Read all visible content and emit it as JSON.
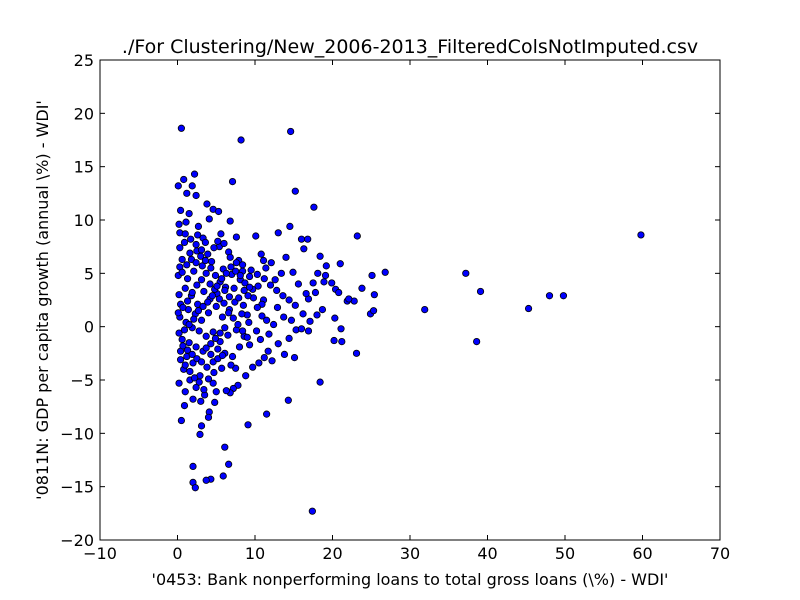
{
  "chart_data": {
    "type": "scatter",
    "title": "./For Clustering/New_2006-2013_FilteredColsNotImputed.csv",
    "xlabel": "'0453: Bank nonperforming loans to total gross loans  (\\%) - WDI'",
    "ylabel": "'0811N: GDP per capita growth  (annual \\%) - WDI'",
    "xlim": [
      -10,
      70
    ],
    "ylim": [
      -20,
      25
    ],
    "x_ticks": [
      -10,
      0,
      10,
      20,
      30,
      40,
      50,
      60,
      70
    ],
    "y_ticks": [
      -20,
      -15,
      -10,
      -5,
      0,
      5,
      10,
      15,
      20,
      25
    ],
    "grid": false,
    "marker_color": "#0000ff",
    "marker_edge_color": "#000000",
    "series": [
      {
        "points": [
          [
            0.5,
            18.6
          ],
          [
            8.2,
            17.5
          ],
          [
            14.6,
            18.3
          ],
          [
            0.1,
            13.2
          ],
          [
            0.8,
            13.8
          ],
          [
            2.2,
            14.3
          ],
          [
            1.9,
            13.2
          ],
          [
            7.1,
            13.6
          ],
          [
            1.2,
            12.5
          ],
          [
            2.4,
            12.3
          ],
          [
            15.2,
            12.7
          ],
          [
            17.6,
            11.2
          ],
          [
            0.4,
            10.9
          ],
          [
            1.5,
            10.6
          ],
          [
            3.8,
            11.5
          ],
          [
            4.6,
            11.0
          ],
          [
            5.3,
            10.8
          ],
          [
            0.2,
            9.6
          ],
          [
            1.1,
            9.8
          ],
          [
            2.7,
            9.4
          ],
          [
            4.1,
            10.1
          ],
          [
            6.8,
            9.9
          ],
          [
            14.5,
            9.4
          ],
          [
            10.1,
            8.5
          ],
          [
            23.2,
            8.5
          ],
          [
            59.8,
            8.6
          ],
          [
            0.3,
            8.8
          ],
          [
            1.0,
            8.7
          ],
          [
            2.6,
            8.6
          ],
          [
            3.3,
            8.3
          ],
          [
            5.6,
            8.7
          ],
          [
            7.6,
            8.4
          ],
          [
            13.0,
            8.8
          ],
          [
            16.0,
            8.2
          ],
          [
            16.8,
            8.2
          ],
          [
            14.0,
            6.5
          ],
          [
            18.4,
            6.6
          ],
          [
            21.0,
            5.9
          ],
          [
            16.3,
            7.3
          ],
          [
            11.1,
            6.2
          ],
          [
            26.8,
            5.1
          ],
          [
            37.2,
            5.0
          ],
          [
            25.1,
            4.8
          ],
          [
            39.1,
            3.3
          ],
          [
            31.9,
            1.6
          ],
          [
            45.3,
            1.7
          ],
          [
            48.0,
            2.9
          ],
          [
            49.8,
            2.9
          ],
          [
            38.6,
            -1.4
          ],
          [
            23.1,
            -2.5
          ],
          [
            25.4,
            3.0
          ],
          [
            24.9,
            1.2
          ],
          [
            25.3,
            1.5
          ],
          [
            21.9,
            2.4
          ],
          [
            22.8,
            2.4
          ],
          [
            23.8,
            3.6
          ],
          [
            20.4,
            3.5
          ],
          [
            19.1,
            4.8
          ],
          [
            19.2,
            5.7
          ],
          [
            18.1,
            5.0
          ],
          [
            17.8,
            3.2
          ],
          [
            16.9,
            2.6
          ],
          [
            16.2,
            1.2
          ],
          [
            14.7,
            0.6
          ],
          [
            15.3,
            -0.3
          ],
          [
            14.4,
            -1.1
          ],
          [
            13.0,
            -1.6
          ],
          [
            11.7,
            -2.3
          ],
          [
            13.8,
            -2.6
          ],
          [
            15.1,
            -2.9
          ],
          [
            16.9,
            -0.4
          ],
          [
            18.7,
            1.6
          ],
          [
            20.3,
            0.8
          ],
          [
            21.1,
            -0.2
          ],
          [
            21.2,
            -1.4
          ],
          [
            20.2,
            -1.3
          ],
          [
            18.4,
            -5.2
          ],
          [
            14.3,
            -6.9
          ],
          [
            11.5,
            -8.2
          ],
          [
            9.1,
            -9.2
          ],
          [
            17.4,
            -17.3
          ],
          [
            7.8,
            -5.5
          ],
          [
            7.2,
            -5.8
          ],
          [
            6.8,
            -6.2
          ],
          [
            6.3,
            -6.0
          ],
          [
            5.0,
            -6.1
          ],
          [
            4.8,
            -7.1
          ],
          [
            4.1,
            -8.0
          ],
          [
            3.1,
            -9.3
          ],
          [
            2.9,
            -10.1
          ],
          [
            0.5,
            -8.8
          ],
          [
            0.9,
            -7.4
          ],
          [
            4.0,
            -8.5
          ],
          [
            6.1,
            -11.3
          ],
          [
            6.6,
            -12.9
          ],
          [
            2.0,
            -13.1
          ],
          [
            4.3,
            -14.3
          ],
          [
            2.0,
            -14.6
          ],
          [
            3.7,
            -14.4
          ],
          [
            5.9,
            -14.0
          ],
          [
            2.3,
            -15.1
          ],
          [
            9.7,
            -3.8
          ],
          [
            10.5,
            -3.4
          ],
          [
            8.8,
            -4.6
          ],
          [
            7.5,
            -3.9
          ],
          [
            11.8,
            -0.7
          ],
          [
            12.4,
            0.2
          ],
          [
            13.7,
            0.9
          ],
          [
            12.9,
            1.8
          ],
          [
            11.1,
            2.5
          ],
          [
            10.4,
            3.8
          ],
          [
            12.6,
            4.4
          ],
          [
            13.4,
            5.0
          ],
          [
            14.9,
            5.1
          ],
          [
            15.6,
            4.0
          ],
          [
            16.6,
            3.1
          ],
          [
            17.5,
            4.1
          ],
          [
            18.9,
            4.2
          ],
          [
            19.9,
            4.1
          ],
          [
            20.8,
            3.2
          ],
          [
            22.1,
            2.6
          ],
          [
            18.0,
            1.1
          ],
          [
            17.1,
            0.5
          ],
          [
            16.0,
            -0.2
          ],
          [
            9.0,
            1.1
          ],
          [
            9.8,
            2.7
          ],
          [
            10.9,
            2.1
          ],
          [
            8.6,
            3.4
          ],
          [
            8.4,
            5.2
          ],
          [
            9.3,
            4.7
          ],
          [
            11.4,
            5.5
          ],
          [
            12.1,
            6.0
          ],
          [
            10.8,
            6.8
          ],
          [
            7.9,
            6.2
          ],
          [
            6.6,
            7.0
          ],
          [
            5.4,
            7.5
          ],
          [
            3.6,
            7.9
          ],
          [
            2.5,
            7.1
          ],
          [
            1.6,
            6.9
          ],
          [
            0.6,
            6.3
          ],
          [
            0.3,
            5.6
          ],
          [
            0.1,
            4.8
          ],
          [
            1.3,
            4.5
          ],
          [
            2.1,
            5.2
          ],
          [
            3.2,
            5.7
          ],
          [
            4.4,
            6.1
          ],
          [
            5.9,
            5.4
          ],
          [
            7.0,
            4.9
          ],
          [
            8.1,
            4.4
          ],
          [
            6.2,
            3.7
          ],
          [
            5.1,
            3.1
          ],
          [
            4.2,
            2.6
          ],
          [
            3.4,
            3.3
          ],
          [
            2.6,
            2.1
          ],
          [
            1.8,
            2.9
          ],
          [
            1.0,
            3.6
          ],
          [
            0.2,
            3.0
          ],
          [
            0.4,
            2.1
          ],
          [
            1.4,
            1.6
          ],
          [
            2.3,
            1.2
          ],
          [
            3.1,
            0.6
          ],
          [
            4.0,
            1.3
          ],
          [
            5.0,
            1.9
          ],
          [
            5.8,
            0.9
          ],
          [
            6.7,
            1.6
          ],
          [
            7.4,
            2.3
          ],
          [
            8.3,
            1.2
          ],
          [
            9.2,
            0.4
          ],
          [
            10.2,
            -0.4
          ],
          [
            8.6,
            -0.9
          ],
          [
            7.6,
            -0.3
          ],
          [
            6.5,
            -0.8
          ],
          [
            5.5,
            -1.4
          ],
          [
            4.6,
            -0.5
          ],
          [
            3.7,
            -0.9
          ],
          [
            2.8,
            -0.4
          ],
          [
            1.9,
            -0.1
          ],
          [
            1.1,
            0.4
          ],
          [
            0.3,
            0.9
          ],
          [
            0.2,
            -0.6
          ],
          [
            0.6,
            -1.2
          ],
          [
            1.5,
            -1.5
          ],
          [
            2.4,
            -1.9
          ],
          [
            3.3,
            -2.3
          ],
          [
            4.3,
            -2.6
          ],
          [
            5.2,
            -2.1
          ],
          [
            6.1,
            -2.5
          ],
          [
            7.1,
            -2.8
          ],
          [
            8.0,
            -1.9
          ],
          [
            9.3,
            -1.7
          ],
          [
            10.7,
            -1.2
          ],
          [
            11.2,
            -2.9
          ],
          [
            12.2,
            -3.2
          ],
          [
            6.9,
            -3.6
          ],
          [
            5.7,
            -3.9
          ],
          [
            4.7,
            -4.3
          ],
          [
            3.8,
            -3.8
          ],
          [
            2.9,
            -4.6
          ],
          [
            2.0,
            -3.4
          ],
          [
            1.2,
            -2.8
          ],
          [
            0.4,
            -2.3
          ],
          [
            0.8,
            -4.0
          ],
          [
            1.6,
            -5.0
          ],
          [
            2.4,
            -5.7
          ],
          [
            3.5,
            -6.4
          ],
          [
            4.6,
            -5.3
          ],
          [
            0.2,
            -5.3
          ],
          [
            1.0,
            -6.1
          ],
          [
            2.0,
            -6.8
          ],
          [
            3.0,
            -7.0
          ],
          [
            0.3,
            7.4
          ],
          [
            0.9,
            7.9
          ],
          [
            1.7,
            8.2
          ],
          [
            2.4,
            7.7
          ],
          [
            3.1,
            7.2
          ],
          [
            3.9,
            6.8
          ],
          [
            4.7,
            7.4
          ],
          [
            5.2,
            8.0
          ],
          [
            6.0,
            7.8
          ],
          [
            6.8,
            6.5
          ],
          [
            7.6,
            6.0
          ],
          [
            8.4,
            5.8
          ],
          [
            9.5,
            5.3
          ],
          [
            10.3,
            4.9
          ],
          [
            11.2,
            4.5
          ],
          [
            12.0,
            3.9
          ],
          [
            12.8,
            3.4
          ],
          [
            13.6,
            2.9
          ],
          [
            14.4,
            2.5
          ],
          [
            15.2,
            2.0
          ],
          [
            0.1,
            1.3
          ],
          [
            0.7,
            1.8
          ],
          [
            1.3,
            2.4
          ],
          [
            1.9,
            3.2
          ],
          [
            2.5,
            3.9
          ],
          [
            3.1,
            4.4
          ],
          [
            3.7,
            5.0
          ],
          [
            4.3,
            5.5
          ],
          [
            4.9,
            4.8
          ],
          [
            5.5,
            4.2
          ],
          [
            6.1,
            3.4
          ],
          [
            6.7,
            2.8
          ],
          [
            7.3,
            3.6
          ],
          [
            7.9,
            2.7
          ],
          [
            8.5,
            2.0
          ],
          [
            9.1,
            2.9
          ],
          [
            9.7,
            3.5
          ],
          [
            10.3,
            1.8
          ],
          [
            10.9,
            1.0
          ],
          [
            11.5,
            0.6
          ],
          [
            0.6,
            5.1
          ],
          [
            1.2,
            5.8
          ],
          [
            1.8,
            6.3
          ],
          [
            2.4,
            6.0
          ],
          [
            3.0,
            6.6
          ],
          [
            3.6,
            6.2
          ],
          [
            4.2,
            4.0
          ],
          [
            4.8,
            3.5
          ],
          [
            5.4,
            2.6
          ],
          [
            6.0,
            2.2
          ],
          [
            6.6,
            1.3
          ],
          [
            7.2,
            0.8
          ],
          [
            7.8,
            0.2
          ],
          [
            8.4,
            -0.4
          ],
          [
            9.0,
            -1.0
          ],
          [
            0.9,
            -0.3
          ],
          [
            1.5,
            0.2
          ],
          [
            2.1,
            0.7
          ],
          [
            2.7,
            1.5
          ],
          [
            3.3,
            1.9
          ],
          [
            3.9,
            2.3
          ],
          [
            4.5,
            2.9
          ],
          [
            5.1,
            3.8
          ],
          [
            5.7,
            4.5
          ],
          [
            6.3,
            5.0
          ],
          [
            6.9,
            5.6
          ],
          [
            7.5,
            5.2
          ],
          [
            8.1,
            4.8
          ],
          [
            8.7,
            4.1
          ],
          [
            9.3,
            3.7
          ],
          [
            0.4,
            -3.1
          ],
          [
            1.0,
            -3.6
          ],
          [
            1.6,
            -4.2
          ],
          [
            2.2,
            -4.8
          ],
          [
            2.8,
            -5.2
          ],
          [
            3.4,
            -5.9
          ],
          [
            4.0,
            -4.9
          ],
          [
            4.6,
            -3.3
          ],
          [
            5.2,
            -3.0
          ],
          [
            5.8,
            -2.7
          ],
          [
            0.7,
            -1.8
          ],
          [
            1.3,
            -2.2
          ],
          [
            1.9,
            -2.6
          ],
          [
            2.5,
            -3.0
          ],
          [
            3.1,
            -3.3
          ],
          [
            3.7,
            -2.0
          ],
          [
            4.3,
            -1.6
          ],
          [
            4.9,
            -1.1
          ],
          [
            5.5,
            -0.6
          ],
          [
            6.1,
            -0.1
          ]
        ]
      }
    ]
  }
}
